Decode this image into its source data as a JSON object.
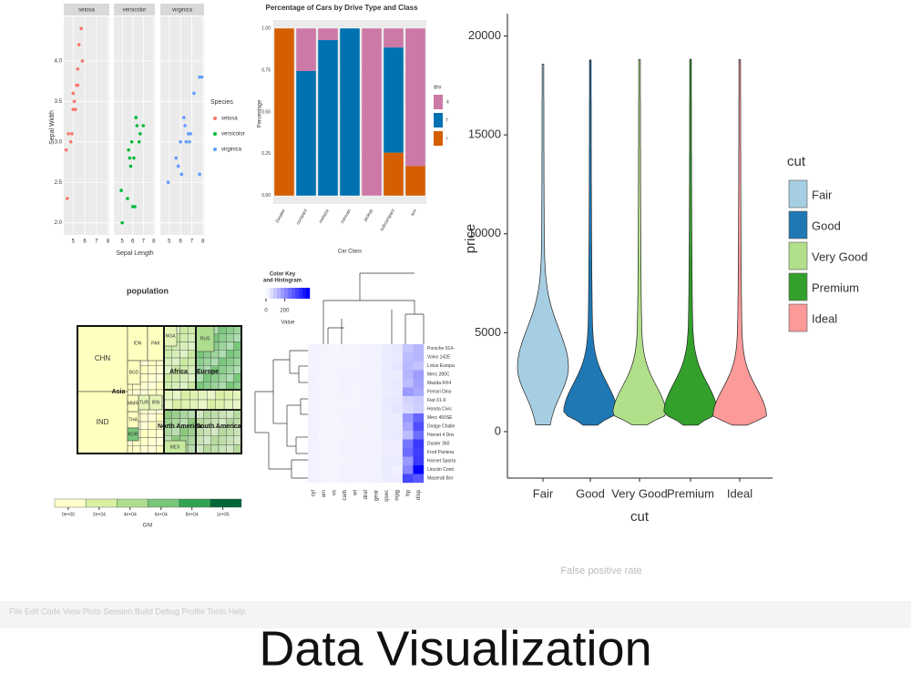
{
  "title": "Data Visualization",
  "background_text": {
    "menu": "File Edit Code View Plots Session Build Debug Profile Tools Help",
    "axis_label": "False positive rate"
  },
  "chart_data": [
    {
      "type": "facet-scatter",
      "x_label": "Sepal Length",
      "y_label": "Sepal Width",
      "legend_title": "Species",
      "xlim": [
        4.2,
        8.1
      ],
      "xticks": [
        5,
        6,
        7,
        8
      ],
      "ylim": [
        1.85,
        4.55
      ],
      "yticks": [
        {
          "value": 2,
          "label": "2.0"
        },
        2.5,
        {
          "value": 3,
          "label": "3.0"
        },
        3.5,
        {
          "value": 4,
          "label": "4.0"
        }
      ],
      "series": [
        {
          "name": "setosa",
          "color": "#f8766d",
          "x": [
            4.4,
            4.6,
            4.8,
            4.9,
            5.0,
            5.0,
            5.1,
            5.2,
            5.4,
            5.4,
            5.5,
            5.7,
            5.8,
            4.5,
            5.3
          ],
          "y": [
            2.9,
            3.1,
            3.0,
            3.1,
            3.4,
            3.6,
            3.5,
            3.4,
            3.9,
            3.7,
            4.2,
            4.4,
            4.0,
            2.3,
            3.7
          ]
        },
        {
          "name": "versicolor",
          "color": "#00ba38",
          "x": [
            4.9,
            5.0,
            5.5,
            5.6,
            5.7,
            5.8,
            6.0,
            6.1,
            6.3,
            6.4,
            6.6,
            6.7,
            7.0,
            6.2,
            5.9
          ],
          "y": [
            2.4,
            2.0,
            2.3,
            2.9,
            2.8,
            2.7,
            2.2,
            2.8,
            3.3,
            3.2,
            3.0,
            3.1,
            3.2,
            2.2,
            3.0
          ]
        },
        {
          "name": "virginica",
          "color": "#619cff",
          "x": [
            4.9,
            5.6,
            5.8,
            6.0,
            6.3,
            6.4,
            6.5,
            6.7,
            6.9,
            7.2,
            7.7,
            7.9,
            7.7,
            6.1,
            6.8
          ],
          "y": [
            2.5,
            2.8,
            2.7,
            3.0,
            3.3,
            3.2,
            3.0,
            3.1,
            3.1,
            3.6,
            3.8,
            3.8,
            2.6,
            2.6,
            3.0
          ]
        }
      ]
    },
    {
      "type": "stacked-bar",
      "title": "Percentage of Cars by Drive Type and Class",
      "x_label": "Car Class",
      "y_label": "Percentage",
      "legend_title": "drv",
      "categories": [
        "2seater",
        "compact",
        "midsize",
        "minivan",
        "pickup",
        "subcompact",
        "suv"
      ],
      "ylim": [
        -0.05,
        1.05
      ],
      "yticks": [
        {
          "value": 0,
          "label": "0.00"
        },
        0.25,
        {
          "value": 0.5,
          "label": "0.50"
        },
        0.75,
        {
          "value": 1,
          "label": "1.00"
        }
      ],
      "series": [
        {
          "name": "r",
          "color": "#d55e00",
          "values": [
            1,
            0,
            0,
            0,
            0,
            0.257,
            0.177
          ]
        },
        {
          "name": "f",
          "color": "#0072b2",
          "values": [
            0,
            0.745,
            0.93,
            1,
            0,
            0.629,
            0
          ]
        },
        {
          "name": "4",
          "color": "#cc79a7",
          "values": [
            0,
            0.255,
            0.07,
            0,
            1,
            0.114,
            0.823
          ]
        }
      ]
    },
    {
      "type": "violin",
      "x_label": "cut",
      "y_label": "price",
      "legend_title": "cut",
      "categories": [
        "Fair",
        "Good",
        "Very Good",
        "Premium",
        "Ideal"
      ],
      "colors": [
        "#a6cee3",
        "#1f78b4",
        "#b2df8a",
        "#33a02c",
        "#fb9a99"
      ],
      "min": [
        337,
        327,
        336,
        326,
        326
      ],
      "mode": [
        3300,
        1000,
        900,
        1000,
        800
      ],
      "max": [
        18574,
        18788,
        18818,
        18823,
        18806
      ],
      "ylim": [
        -2350,
        20900
      ],
      "yticks": [
        0,
        5000,
        10000,
        15000,
        20000
      ]
    },
    {
      "type": "treemap",
      "title": "population",
      "nodes": [
        "CHN",
        "IND",
        "IDN",
        "PAK",
        "BGD",
        "NGA",
        "RUS",
        "THA",
        "TUR",
        "IRN",
        "MMR",
        "KOR",
        "MEX"
      ],
      "regions": [
        "Asia",
        "Africa",
        "Europe",
        "North America",
        "South America"
      ],
      "colorbar_label": "GNI",
      "colorbar_lim": [
        -8800,
        112000
      ],
      "colorbar_colors": [
        "#ffffcc",
        "#d9f0a3",
        "#addd8e",
        "#78c679",
        "#31a354",
        "#006837"
      ],
      "colorbar_ticks": [
        {
          "value": 0,
          "label": "0e+00"
        },
        {
          "value": 20000,
          "label": "2e+04"
        },
        {
          "value": 40000,
          "label": "4e+04"
        },
        {
          "value": 60000,
          "label": "6e+04"
        },
        {
          "value": 80000,
          "label": "8e+04"
        },
        {
          "value": 100000,
          "label": "1e+05"
        }
      ]
    },
    {
      "type": "heatmap",
      "key_title": [
        "Color Key",
        "and Histogram"
      ],
      "key_label": "Value",
      "key_lim": [
        0,
        470
      ],
      "key_ticks": [
        0,
        200
      ],
      "columns": [
        "cyl",
        "am",
        "vs",
        "carb",
        "wt",
        "drat",
        "gear",
        "qsec",
        "mpg",
        "hp",
        "disp"
      ],
      "rows": [
        "Porsche 914-",
        "Volvo 142E",
        "Lotus Europa",
        "Merc 280C",
        "Mazda RX4",
        "Ferrari Dino",
        "Fiat X1-9",
        "Honda Civic",
        "Merc 450SE",
        "Dodge Challe",
        "Hornet 4 Driv",
        "Duster 360",
        "Ford Pantera",
        "Hornet Sporta",
        "Lincoln Conti",
        "Maserati Bor"
      ],
      "values": [
        [
          4,
          1,
          0,
          2,
          2.14,
          4.43,
          5,
          16.7,
          26,
          91,
          120.3
        ],
        [
          4,
          1,
          1,
          2,
          2.78,
          4.11,
          4,
          18.6,
          21.4,
          109,
          121
        ],
        [
          4,
          1,
          1,
          2,
          1.51,
          3.77,
          5,
          16.9,
          30.4,
          113,
          95.1
        ],
        [
          6,
          0,
          1,
          4,
          3.44,
          3.92,
          4,
          18.9,
          17.8,
          123,
          167.6
        ],
        [
          6,
          1,
          0,
          4,
          2.62,
          3.9,
          4,
          16.46,
          21,
          110,
          160
        ],
        [
          6,
          1,
          0,
          6,
          2.77,
          3.62,
          5,
          15.5,
          19.7,
          175,
          145
        ],
        [
          4,
          1,
          1,
          1,
          1.935,
          4.08,
          4,
          18.9,
          27.3,
          66,
          79
        ],
        [
          4,
          1,
          1,
          2,
          1.615,
          4.93,
          4,
          18.52,
          30.4,
          52,
          75.7
        ],
        [
          8,
          0,
          0,
          3,
          4.07,
          3.07,
          3,
          17.4,
          16.4,
          180,
          275.8
        ],
        [
          8,
          0,
          0,
          2,
          3.52,
          2.76,
          3,
          16.87,
          15.5,
          150,
          318
        ],
        [
          6,
          0,
          1,
          1,
          3.215,
          3.08,
          3,
          19.44,
          21.4,
          110,
          258
        ],
        [
          8,
          0,
          0,
          4,
          3.57,
          3.21,
          3,
          15.84,
          14.3,
          245,
          360
        ],
        [
          8,
          1,
          0,
          4,
          3.17,
          4.22,
          5,
          14.5,
          15.8,
          264,
          351
        ],
        [
          8,
          0,
          0,
          2,
          3.44,
          3.15,
          3,
          17.02,
          18.7,
          175,
          360
        ],
        [
          8,
          0,
          0,
          4,
          5.424,
          3,
          3,
          17.82,
          10.4,
          215,
          460
        ],
        [
          8,
          1,
          0,
          8,
          3.57,
          3.54,
          5,
          14.6,
          15,
          335,
          301
        ]
      ]
    }
  ]
}
